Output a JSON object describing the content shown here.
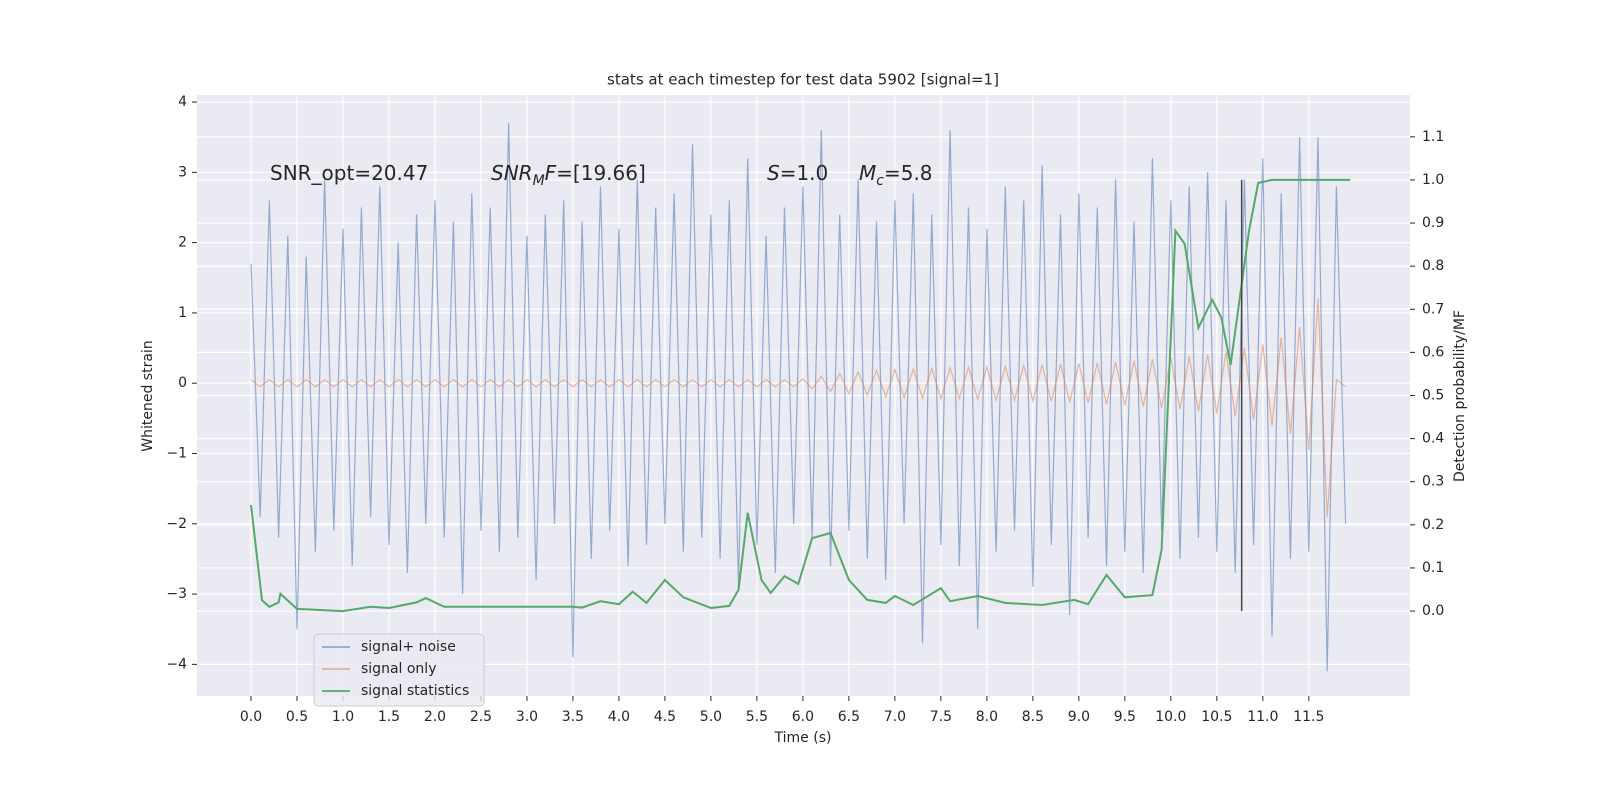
{
  "chart_data": {
    "type": "line",
    "title": "stats at each timestep for test data 5902 [signal=1]",
    "xlabel": "Time (s)",
    "ylabel": "Whitened strain",
    "y2label": "Detection probability/MF",
    "annotations": [
      [
        {
          "t": "SNR_opt=20.47"
        }
      ],
      [
        {
          "t": "SNR",
          "i": true
        },
        {
          "t": "M",
          "i": true,
          "sub": true
        },
        {
          "t": "F",
          "i": true
        },
        {
          "t": "=[19.66]"
        }
      ],
      [
        {
          "t": "S",
          "i": true
        },
        {
          "t": "=1.0"
        }
      ],
      [
        {
          "t": "M",
          "i": true
        },
        {
          "t": "c",
          "i": true,
          "sub": true
        },
        {
          "t": "=5.8"
        }
      ]
    ],
    "xlim": [
      -0.587,
      12.6
    ],
    "ylim": [
      -4.45,
      4.1
    ],
    "y2lim": [
      -0.197,
      1.197
    ],
    "xticks": [
      {
        "value": 0,
        "label": "0.0"
      },
      0.5,
      {
        "value": 1,
        "label": "1.0"
      },
      1.5,
      {
        "value": 2,
        "label": "2.0"
      },
      2.5,
      {
        "value": 3,
        "label": "3.0"
      },
      3.5,
      {
        "value": 4,
        "label": "4.0"
      },
      4.5,
      {
        "value": 5,
        "label": "5.0"
      },
      5.5,
      {
        "value": 6,
        "label": "6.0"
      },
      6.5,
      {
        "value": 7,
        "label": "7.0"
      },
      7.5,
      {
        "value": 8,
        "label": "8.0"
      },
      8.5,
      {
        "value": 9,
        "label": "9.0"
      },
      9.5,
      {
        "value": 10,
        "label": "10.0"
      },
      10.5,
      {
        "value": 11,
        "label": "11.0"
      },
      11.5
    ],
    "yticks": [
      {
        "value": -4,
        "label": "−4"
      },
      {
        "value": -3,
        "label": "−3"
      },
      {
        "value": -2,
        "label": "−2"
      },
      {
        "value": -1,
        "label": "−1"
      },
      0,
      1,
      2,
      3,
      4
    ],
    "y2ticks": [
      {
        "value": 0,
        "label": "0.0"
      },
      0.1,
      0.2,
      0.3,
      0.4,
      0.5,
      0.6,
      0.7,
      0.8,
      0.9,
      {
        "value": 1,
        "label": "1.0"
      },
      1.1
    ],
    "grid": true,
    "legend": "lower left",
    "vline_x": 10.77,
    "x": [
      0.0,
      0.1,
      0.2,
      0.3,
      0.4,
      0.5,
      0.6,
      0.7,
      0.8,
      0.9,
      1.0,
      1.1,
      1.2,
      1.3,
      1.4,
      1.5,
      1.6,
      1.7,
      1.8,
      1.9,
      2.0,
      2.1,
      2.2,
      2.3,
      2.4,
      2.5,
      2.6,
      2.7,
      2.8,
      2.9,
      3.0,
      3.1,
      3.2,
      3.3,
      3.4,
      3.5,
      3.6,
      3.7,
      3.8,
      3.9,
      4.0,
      4.1,
      4.2,
      4.3,
      4.4,
      4.5,
      4.6,
      4.7,
      4.8,
      4.9,
      5.0,
      5.1,
      5.2,
      5.3,
      5.4,
      5.5,
      5.6,
      5.7,
      5.8,
      5.9,
      6.0,
      6.1,
      6.2,
      6.3,
      6.4,
      6.5,
      6.6,
      6.7,
      6.8,
      6.9,
      7.0,
      7.1,
      7.2,
      7.3,
      7.4,
      7.5,
      7.6,
      7.7,
      7.8,
      7.9,
      8.0,
      8.1,
      8.2,
      8.3,
      8.4,
      8.5,
      8.6,
      8.7,
      8.8,
      8.9,
      9.0,
      9.1,
      9.2,
      9.3,
      9.4,
      9.5,
      9.6,
      9.7,
      9.8,
      9.9,
      10.0,
      10.1,
      10.2,
      10.3,
      10.4,
      10.5,
      10.6,
      10.7,
      10.8,
      10.9,
      11.0,
      11.1,
      11.2,
      11.3,
      11.4,
      11.5,
      11.6,
      11.7,
      11.8,
      11.9
    ],
    "series": [
      {
        "name": "signal+ noise",
        "color": "#4c72b0",
        "values": [
          1.7,
          -1.9,
          2.6,
          -2.2,
          2.1,
          -3.5,
          1.8,
          -2.4,
          2.9,
          -2.1,
          2.2,
          -2.6,
          2.5,
          -1.9,
          2.8,
          -2.3,
          2.0,
          -2.7,
          2.4,
          -2.0,
          2.6,
          -2.2,
          2.3,
          -3.0,
          2.7,
          -2.1,
          2.5,
          -2.4,
          3.7,
          -2.2,
          2.1,
          -2.8,
          2.4,
          -2.0,
          2.6,
          -3.9,
          2.3,
          -2.5,
          2.8,
          -2.1,
          2.2,
          -2.6,
          2.9,
          -2.3,
          2.5,
          -2.0,
          2.7,
          -2.4,
          3.4,
          -2.2,
          2.4,
          -2.5,
          2.6,
          -2.9,
          3.2,
          -2.3,
          2.1,
          -2.7,
          2.5,
          -2.0,
          2.8,
          -2.2,
          3.6,
          -2.6,
          2.4,
          -2.1,
          2.9,
          -2.5,
          2.3,
          -2.8,
          2.6,
          -2.0,
          2.7,
          -3.7,
          2.4,
          -2.3,
          3.6,
          -2.6,
          2.5,
          -3.5,
          2.2,
          -2.4,
          2.8,
          -2.1,
          2.6,
          -2.9,
          3.1,
          -2.3,
          2.4,
          -3.3,
          2.7,
          -2.2,
          2.5,
          -2.6,
          2.9,
          -2.4,
          2.3,
          -2.7,
          3.2,
          -2.1,
          2.6,
          -2.5,
          2.8,
          -2.2,
          3.0,
          -2.4,
          2.6,
          -2.7,
          2.9,
          -2.3,
          3.2,
          -3.6,
          2.7,
          -2.5,
          3.5,
          -2.4,
          3.5,
          -4.1,
          2.8,
          -2.0
        ]
      },
      {
        "name": "signal only",
        "color": "#dd8452",
        "values": [
          0.05,
          -0.05,
          0.05,
          -0.05,
          0.05,
          -0.05,
          0.05,
          -0.05,
          0.05,
          -0.05,
          0.05,
          -0.05,
          0.05,
          -0.05,
          0.05,
          -0.05,
          0.05,
          -0.05,
          0.05,
          -0.05,
          0.05,
          -0.05,
          0.05,
          -0.05,
          0.05,
          -0.05,
          0.05,
          -0.05,
          0.05,
          -0.05,
          0.05,
          -0.05,
          0.05,
          -0.05,
          0.05,
          -0.05,
          0.05,
          -0.05,
          0.05,
          -0.05,
          0.05,
          -0.05,
          0.05,
          -0.05,
          0.05,
          -0.05,
          0.05,
          -0.05,
          0.05,
          -0.05,
          0.05,
          -0.05,
          0.05,
          -0.05,
          0.05,
          -0.05,
          0.05,
          -0.05,
          0.05,
          -0.05,
          0.06,
          -0.08,
          0.1,
          -0.12,
          0.14,
          -0.15,
          0.16,
          -0.17,
          0.18,
          -0.19,
          0.19,
          -0.2,
          0.2,
          -0.21,
          0.21,
          -0.22,
          0.22,
          -0.22,
          0.23,
          -0.23,
          0.23,
          -0.24,
          0.24,
          -0.24,
          0.25,
          -0.25,
          0.26,
          -0.26,
          0.27,
          -0.27,
          0.28,
          -0.28,
          0.29,
          -0.3,
          0.3,
          -0.31,
          0.32,
          -0.33,
          0.34,
          -0.35,
          0.36,
          -0.37,
          0.38,
          -0.4,
          0.41,
          -0.43,
          0.45,
          -0.47,
          0.5,
          -0.52,
          0.55,
          -0.6,
          0.65,
          -0.72,
          0.8,
          -0.95,
          1.2,
          -1.9,
          0.05,
          -0.05
        ]
      },
      {
        "name": "signal statistics",
        "color": "#55a868",
        "axis": "y2",
        "x": [
          0,
          0.12,
          0.2,
          0.3,
          0.32,
          0.5,
          1.0,
          1.3,
          1.5,
          1.8,
          1.9,
          2.1,
          2.5,
          2.8,
          3.5,
          3.6,
          3.8,
          4.0,
          4.15,
          4.3,
          4.5,
          4.7,
          5.0,
          5.2,
          5.3,
          5.4,
          5.55,
          5.65,
          5.8,
          5.95,
          6.1,
          6.3,
          6.5,
          6.7,
          6.9,
          7.0,
          7.2,
          7.5,
          7.6,
          7.9,
          8.2,
          8.6,
          8.95,
          9.1,
          9.3,
          9.5,
          9.8,
          9.9,
          10.05,
          10.15,
          10.3,
          10.45,
          10.55,
          10.65,
          10.85,
          10.95,
          11.1,
          11.95
        ],
        "values": [
          0.246,
          0.025,
          0.01,
          0.02,
          0.04,
          0.005,
          0.0,
          0.01,
          0.007,
          0.02,
          0.03,
          0.01,
          0.01,
          0.01,
          0.01,
          0.008,
          0.023,
          0.016,
          0.045,
          0.019,
          0.072,
          0.032,
          0.007,
          0.012,
          0.049,
          0.228,
          0.072,
          0.042,
          0.081,
          0.063,
          0.169,
          0.181,
          0.072,
          0.026,
          0.019,
          0.035,
          0.014,
          0.053,
          0.023,
          0.035,
          0.019,
          0.014,
          0.026,
          0.016,
          0.084,
          0.032,
          0.037,
          0.142,
          0.882,
          0.852,
          0.657,
          0.722,
          0.68,
          0.571,
          0.882,
          0.993,
          1.0,
          1.0
        ]
      }
    ]
  }
}
